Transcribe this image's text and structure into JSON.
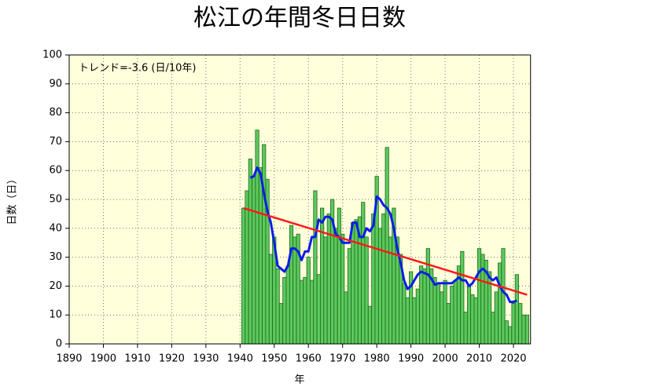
{
  "chart_data": {
    "type": "bar",
    "title": "松江の年間冬日日数",
    "annotation": "トレンド=-3.6 (日/10年)",
    "y_label": "日数（日）",
    "x_label": "年",
    "x": [
      1941,
      1942,
      1943,
      1944,
      1945,
      1946,
      1947,
      1948,
      1949,
      1950,
      1951,
      1952,
      1953,
      1954,
      1955,
      1956,
      1957,
      1958,
      1959,
      1960,
      1961,
      1962,
      1963,
      1964,
      1965,
      1966,
      1967,
      1968,
      1969,
      1970,
      1971,
      1972,
      1973,
      1974,
      1975,
      1976,
      1977,
      1978,
      1979,
      1980,
      1981,
      1982,
      1983,
      1984,
      1985,
      1986,
      1987,
      1988,
      1989,
      1990,
      1991,
      1992,
      1993,
      1994,
      1995,
      1996,
      1997,
      1998,
      1999,
      2000,
      2001,
      2002,
      2003,
      2004,
      2005,
      2006,
      2007,
      2008,
      2009,
      2010,
      2011,
      2012,
      2013,
      2014,
      2015,
      2016,
      2017,
      2018,
      2019,
      2020,
      2021,
      2022,
      2023,
      2024
    ],
    "series": [
      {
        "color": "#5cc85c",
        "values": [
          47,
          53,
          64,
          58,
          74,
          61,
          69,
          57,
          31,
          37,
          26,
          14,
          23,
          27,
          41,
          37,
          38,
          22,
          23,
          30,
          22,
          53,
          24,
          47,
          37,
          45,
          50,
          40,
          47,
          38,
          18,
          33,
          42,
          43,
          44,
          49,
          37,
          13,
          45,
          58,
          40,
          45,
          68,
          37,
          47,
          37,
          31,
          21,
          16,
          25,
          16,
          19,
          27,
          26,
          33,
          26,
          23,
          21,
          18,
          22,
          14,
          20,
          22,
          27,
          32,
          11,
          20,
          17,
          16,
          33,
          31,
          29,
          25,
          11,
          18,
          28,
          33,
          8,
          6,
          14,
          24,
          14,
          10,
          10
        ]
      },
      {
        "color": "#0a1ee6",
        "values": [
          null,
          null,
          57.5,
          58,
          61,
          59,
          52,
          46,
          42,
          35,
          27,
          26,
          25,
          27,
          33,
          33,
          32,
          29,
          32,
          32,
          37,
          37,
          43,
          42,
          44,
          44,
          43,
          38,
          37,
          35,
          35,
          35,
          42,
          42,
          37,
          37,
          40,
          39,
          41,
          51,
          50,
          48,
          47,
          45,
          40,
          33,
          28,
          22,
          19,
          20,
          22,
          24,
          25,
          24.5,
          24,
          22.5,
          20.5,
          21,
          21,
          21,
          21,
          21,
          22,
          23,
          22,
          22,
          20,
          21,
          23,
          25,
          26,
          25,
          23,
          22,
          23,
          20,
          18,
          17,
          14.5,
          14.5,
          15,
          null,
          null,
          null
        ]
      }
    ],
    "trend": {
      "x": [
        1941,
        2024
      ],
      "values": [
        47,
        17
      ],
      "color": "#ff1a1a"
    },
    "xlim": [
      1890,
      2025
    ],
    "ylim": [
      0,
      100
    ],
    "xticks": [
      1890,
      1900,
      1910,
      1920,
      1930,
      1940,
      1950,
      1960,
      1970,
      1980,
      1990,
      2000,
      2010,
      2020
    ],
    "yticks": [
      0,
      10,
      20,
      30,
      40,
      50,
      60,
      70,
      80,
      90,
      100
    ],
    "grid": true,
    "background": "#ffffdc"
  }
}
